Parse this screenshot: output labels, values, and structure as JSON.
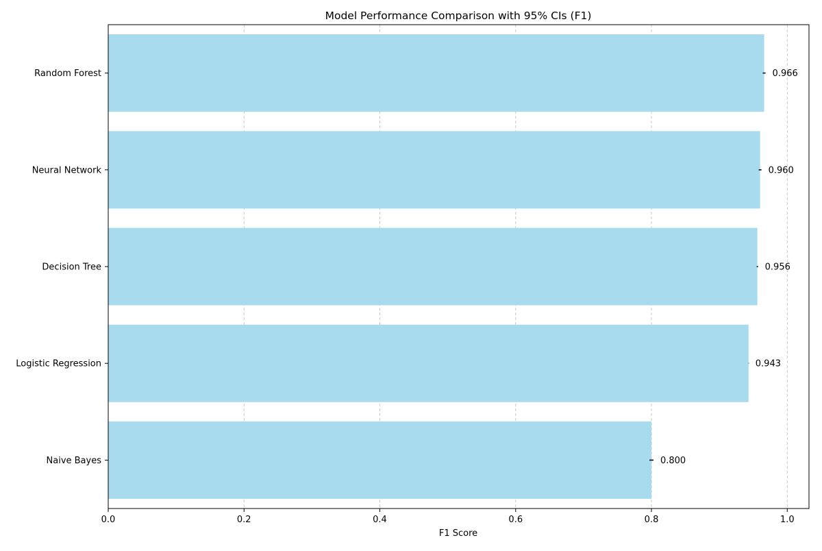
{
  "chart_data": {
    "type": "bar",
    "orientation": "horizontal",
    "title": "Model Performance Comparison with 95% CIs (F1)",
    "xlabel": "F1 Score",
    "ylabel": "",
    "xlim": [
      0,
      1.032
    ],
    "xticks": [
      0.0,
      0.2,
      0.4,
      0.6,
      0.8,
      1.0
    ],
    "xtick_labels": [
      "0.0",
      "0.2",
      "0.4",
      "0.6",
      "0.8",
      "1.0"
    ],
    "grid": "x-dashed",
    "categories": [
      "Random Forest",
      "Neural Network",
      "Decision Tree",
      "Logistic Regression",
      "Naive Bayes"
    ],
    "values": [
      0.966,
      0.96,
      0.956,
      0.943,
      0.8
    ],
    "value_labels": [
      "0.966",
      "0.960",
      "0.956",
      "0.943",
      "0.800"
    ],
    "ci_lower": [
      0.964,
      0.958,
      0.955,
      0.943,
      0.797
    ],
    "ci_upper": [
      0.968,
      0.962,
      0.957,
      0.943,
      0.803
    ],
    "colors": {
      "bar": "#a8dbee",
      "error_bar": "#000000",
      "grid": "#c8c8c8",
      "axis": "#000000"
    }
  }
}
